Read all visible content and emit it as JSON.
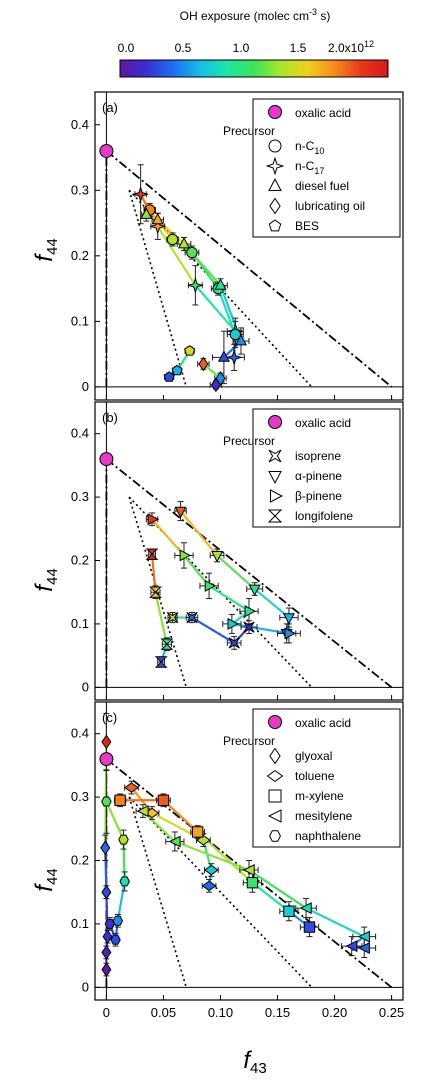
{
  "colorbar": {
    "title_main": "OH exposure (molec cm",
    "title_sup": "-3",
    "title_end": " s)",
    "ticks": [
      "0.0",
      "0.5",
      "1.0",
      "1.5"
    ],
    "last_tick_base": "2.0x10",
    "last_tick_sup": "12"
  },
  "axis": {
    "x_main": "f",
    "x_sub": "43",
    "y_main": "f",
    "y_sub": "44"
  },
  "chart_data": [
    {
      "type": "scatter",
      "panel_label": "(a)",
      "xlim": [
        -0.01,
        0.26
      ],
      "ylim": [
        -0.02,
        0.45
      ],
      "xticks": [
        0,
        0.05,
        0.1,
        0.15,
        0.2,
        0.25
      ],
      "yticks": [
        0,
        0.1,
        0.2,
        0.3,
        0.4
      ],
      "legend": {
        "oxalic": "oxalic acid",
        "header": "Precursor",
        "items": [
          {
            "shape": "circle",
            "label": "n-C",
            "sub": "10"
          },
          {
            "shape": "star4",
            "label": "n-C",
            "sub": "17"
          },
          {
            "shape": "triangle-up",
            "label": "diesel fuel"
          },
          {
            "shape": "diamond",
            "label": "lubricating oil"
          },
          {
            "shape": "pentagon",
            "label": "BES"
          }
        ]
      },
      "reference_point": {
        "name": "oxalic acid",
        "x": 0,
        "y": 0.36
      },
      "series": [
        {
          "shape": "star4",
          "points": [
            {
              "x": 0.03,
              "y": 0.294,
              "xe": 0.005,
              "ye": 0.045,
              "oh": 1.9
            },
            {
              "x": 0.045,
              "y": 0.245,
              "xe": 0.006,
              "ye": 0.02,
              "oh": 1.6
            },
            {
              "x": 0.078,
              "y": 0.155,
              "xe": 0.006,
              "ye": 0.03,
              "oh": 1.0
            },
            {
              "x": 0.113,
              "y": 0.085,
              "xe": 0.007,
              "ye": 0.02,
              "oh": 0.7
            },
            {
              "x": 0.112,
              "y": 0.045,
              "xe": 0.009,
              "ye": 0.02,
              "oh": 0.4
            }
          ]
        },
        {
          "shape": "circle",
          "points": [
            {
              "x": 0.038,
              "y": 0.27,
              "xe": 0.005,
              "ye": 0.01,
              "oh": 1.7
            },
            {
              "x": 0.058,
              "y": 0.225,
              "xe": 0.005,
              "ye": 0.01,
              "oh": 1.3
            },
            {
              "x": 0.075,
              "y": 0.205,
              "xe": 0.006,
              "ye": 0.01,
              "oh": 1.1
            },
            {
              "x": 0.098,
              "y": 0.15,
              "xe": 0.006,
              "ye": 0.01,
              "oh": 0.9
            },
            {
              "x": 0.113,
              "y": 0.08,
              "xe": 0.007,
              "ye": 0.02,
              "oh": 0.7
            }
          ]
        },
        {
          "shape": "triangle-up",
          "points": [
            {
              "x": 0.035,
              "y": 0.263,
              "xe": 0.004,
              "ye": 0.01,
              "oh": 1.2
            },
            {
              "x": 0.045,
              "y": 0.255,
              "xe": 0.005,
              "ye": 0.01,
              "oh": 1.6
            },
            {
              "x": 0.068,
              "y": 0.218,
              "xe": 0.006,
              "ye": 0.01,
              "oh": 1.3
            },
            {
              "x": 0.1,
              "y": 0.155,
              "xe": 0.006,
              "ye": 0.01,
              "oh": 0.9
            },
            {
              "x": 0.118,
              "y": 0.07,
              "xe": 0.007,
              "ye": 0.02,
              "oh": 0.5
            },
            {
              "x": 0.103,
              "y": 0.045,
              "xe": 0.01,
              "ye": 0.04,
              "oh": 0.3
            }
          ]
        },
        {
          "shape": "diamond",
          "points": [
            {
              "x": 0.085,
              "y": 0.035,
              "xe": 0.005,
              "ye": 0.008,
              "oh": 1.8
            },
            {
              "x": 0.1,
              "y": 0.013,
              "xe": 0.005,
              "ye": 0.008,
              "oh": 0.5
            },
            {
              "x": 0.096,
              "y": 0.003,
              "xe": 0.005,
              "ye": 0.006,
              "oh": 0.2
            }
          ]
        },
        {
          "shape": "pentagon",
          "points": [
            {
              "x": 0.073,
              "y": 0.055,
              "xe": 0.004,
              "ye": 0.006,
              "oh": 1.4
            },
            {
              "x": 0.062,
              "y": 0.025,
              "xe": 0.004,
              "ye": 0.006,
              "oh": 0.6
            },
            {
              "x": 0.055,
              "y": 0.015,
              "xe": 0.004,
              "ye": 0.006,
              "oh": 0.3
            }
          ]
        }
      ]
    },
    {
      "type": "scatter",
      "panel_label": "(b)",
      "xlim": [
        -0.01,
        0.26
      ],
      "ylim": [
        -0.02,
        0.45
      ],
      "xticks": [
        0,
        0.05,
        0.1,
        0.15,
        0.2,
        0.25
      ],
      "yticks": [
        0,
        0.1,
        0.2,
        0.3,
        0.4
      ],
      "legend": {
        "oxalic": "oxalic acid",
        "header": "Precursor",
        "items": [
          {
            "shape": "square-x",
            "label": "isoprene"
          },
          {
            "shape": "triangle-down",
            "label": "α-pinene"
          },
          {
            "shape": "triangle-right",
            "label": "β-pinene"
          },
          {
            "shape": "hourglass",
            "label": "longifolene"
          }
        ]
      },
      "reference_point": {
        "name": "oxalic acid",
        "x": 0,
        "y": 0.36
      },
      "series": [
        {
          "shape": "triangle-down",
          "points": [
            {
              "x": 0.065,
              "y": 0.278,
              "xe": 0.005,
              "ye": 0.015,
              "oh": 1.8
            },
            {
              "x": 0.097,
              "y": 0.208,
              "xe": 0.006,
              "ye": 0.01,
              "oh": 1.3
            },
            {
              "x": 0.13,
              "y": 0.155,
              "xe": 0.007,
              "ye": 0.01,
              "oh": 0.9
            },
            {
              "x": 0.16,
              "y": 0.11,
              "xe": 0.008,
              "ye": 0.015,
              "oh": 0.6
            },
            {
              "x": 0.158,
              "y": 0.085,
              "xe": 0.008,
              "ye": 0.015,
              "oh": 0.4
            }
          ]
        },
        {
          "shape": "triangle-right",
          "points": [
            {
              "x": 0.04,
              "y": 0.265,
              "xe": 0.005,
              "ye": 0.01,
              "oh": 1.9
            },
            {
              "x": 0.068,
              "y": 0.208,
              "xe": 0.008,
              "ye": 0.02,
              "oh": 1.2
            },
            {
              "x": 0.09,
              "y": 0.16,
              "xe": 0.008,
              "ye": 0.02,
              "oh": 1.0
            },
            {
              "x": 0.125,
              "y": 0.12,
              "xe": 0.008,
              "ye": 0.02,
              "oh": 0.9
            },
            {
              "x": 0.11,
              "y": 0.1,
              "xe": 0.008,
              "ye": 0.015,
              "oh": 0.7
            },
            {
              "x": 0.16,
              "y": 0.085,
              "xe": 0.01,
              "ye": 0.015,
              "oh": 0.5
            }
          ]
        },
        {
          "shape": "hourglass",
          "points": [
            {
              "x": 0.04,
              "y": 0.21,
              "xe": 0.003,
              "ye": 0.008,
              "oh": 2.0
            },
            {
              "x": 0.043,
              "y": 0.15,
              "xe": 0.004,
              "ye": 0.01,
              "oh": 1.5
            },
            {
              "x": 0.053,
              "y": 0.068,
              "xe": 0.004,
              "ye": 0.01,
              "oh": 0.9
            },
            {
              "x": 0.048,
              "y": 0.04,
              "xe": 0.003,
              "ye": 0.008,
              "oh": 0.3
            }
          ]
        },
        {
          "shape": "square-x",
          "points": [
            {
              "x": 0.058,
              "y": 0.11,
              "xe": 0.004,
              "ye": 0.008,
              "oh": 1.3
            },
            {
              "x": 0.075,
              "y": 0.11,
              "xe": 0.005,
              "ye": 0.008,
              "oh": 0.4
            },
            {
              "x": 0.112,
              "y": 0.07,
              "xe": 0.006,
              "ye": 0.01,
              "oh": 0.3
            },
            {
              "x": 0.125,
              "y": 0.095,
              "xe": 0.007,
              "ye": 0.01,
              "oh": 0.2
            }
          ]
        }
      ]
    },
    {
      "type": "scatter",
      "panel_label": "(c)",
      "xlim": [
        -0.01,
        0.26
      ],
      "ylim": [
        -0.02,
        0.45
      ],
      "xticks": [
        0,
        0.05,
        0.1,
        0.15,
        0.2,
        0.25
      ],
      "xtick_labels": [
        "0",
        "0.05",
        "0.10",
        "0.15",
        "0.20",
        "0.25"
      ],
      "yticks": [
        0,
        0.1,
        0.2,
        0.3,
        0.4
      ],
      "legend": {
        "oxalic": "oxalic acid",
        "header": "Precursor",
        "items": [
          {
            "shape": "diamond",
            "label": "glyoxal"
          },
          {
            "shape": "diamond-wide",
            "label": "toluene"
          },
          {
            "shape": "square",
            "label": "m-xylene"
          },
          {
            "shape": "triangle-left-box",
            "label": "mesitylene"
          },
          {
            "shape": "hexagon",
            "label": "naphthalene"
          }
        ]
      },
      "reference_point": {
        "name": "oxalic acid",
        "x": 0,
        "y": 0.36
      },
      "series": [
        {
          "shape": "diamond",
          "points": [
            {
              "x": 0.0,
              "y": 0.387,
              "xe": 0.002,
              "ye": 0.045,
              "oh": 2.0
            },
            {
              "x": -0.001,
              "y": 0.22,
              "xe": 0.002,
              "ye": 0.02,
              "oh": 0.4
            },
            {
              "x": 0.0,
              "y": 0.15,
              "xe": 0.002,
              "ye": 0.01,
              "oh": 0.3
            },
            {
              "x": 0.001,
              "y": 0.08,
              "xe": 0.002,
              "ye": 0.01,
              "oh": 0.2
            },
            {
              "x": 0.0,
              "y": 0.055,
              "xe": 0.002,
              "ye": 0.01,
              "oh": 0.1
            },
            {
              "x": 0.0,
              "y": 0.028,
              "xe": 0.002,
              "ye": 0.01,
              "oh": 0.0
            }
          ]
        },
        {
          "shape": "hexagon",
          "points": [
            {
              "x": 0.0,
              "y": 0.293,
              "xe": 0.003,
              "ye": 0.05,
              "oh": 1.1
            },
            {
              "x": 0.015,
              "y": 0.233,
              "xe": 0.003,
              "ye": 0.015,
              "oh": 1.3
            },
            {
              "x": 0.016,
              "y": 0.167,
              "xe": 0.003,
              "ye": 0.015,
              "oh": 0.8
            },
            {
              "x": 0.01,
              "y": 0.105,
              "xe": 0.003,
              "ye": 0.01,
              "oh": 0.5
            },
            {
              "x": 0.008,
              "y": 0.075,
              "xe": 0.003,
              "ye": 0.01,
              "oh": 0.3
            },
            {
              "x": 0.003,
              "y": 0.1,
              "xe": 0.003,
              "ye": 0.01,
              "oh": 0.2
            }
          ]
        },
        {
          "shape": "diamond-wide",
          "points": [
            {
              "x": 0.022,
              "y": 0.315,
              "xe": 0.006,
              "ye": 0.01,
              "oh": 1.8
            },
            {
              "x": 0.04,
              "y": 0.275,
              "xe": 0.006,
              "ye": 0.01,
              "oh": 1.5
            },
            {
              "x": 0.085,
              "y": 0.232,
              "xe": 0.006,
              "ye": 0.01,
              "oh": 1.3
            },
            {
              "x": 0.092,
              "y": 0.185,
              "xe": 0.006,
              "ye": 0.01,
              "oh": 0.7
            },
            {
              "x": 0.09,
              "y": 0.16,
              "xe": 0.006,
              "ye": 0.01,
              "oh": 0.4
            }
          ]
        },
        {
          "shape": "square",
          "points": [
            {
              "x": 0.012,
              "y": 0.295,
              "xe": 0.005,
              "ye": 0.01,
              "oh": 1.7
            },
            {
              "x": 0.05,
              "y": 0.295,
              "xe": 0.006,
              "ye": 0.01,
              "oh": 1.8
            },
            {
              "x": 0.08,
              "y": 0.245,
              "xe": 0.006,
              "ye": 0.01,
              "oh": 1.6
            },
            {
              "x": 0.128,
              "y": 0.165,
              "xe": 0.008,
              "ye": 0.015,
              "oh": 1.0
            },
            {
              "x": 0.16,
              "y": 0.12,
              "xe": 0.008,
              "ye": 0.015,
              "oh": 0.7
            },
            {
              "x": 0.178,
              "y": 0.095,
              "xe": 0.008,
              "ye": 0.015,
              "oh": 0.3
            }
          ]
        },
        {
          "shape": "triangle-left-box",
          "points": [
            {
              "x": 0.032,
              "y": 0.278,
              "xe": 0.006,
              "ye": 0.01,
              "oh": 1.3
            },
            {
              "x": 0.06,
              "y": 0.23,
              "xe": 0.008,
              "ye": 0.015,
              "oh": 1.1
            },
            {
              "x": 0.125,
              "y": 0.185,
              "xe": 0.008,
              "ye": 0.015,
              "oh": 1.3
            },
            {
              "x": 0.175,
              "y": 0.125,
              "xe": 0.009,
              "ye": 0.015,
              "oh": 0.8
            },
            {
              "x": 0.226,
              "y": 0.08,
              "xe": 0.01,
              "ye": 0.015,
              "oh": 0.7
            },
            {
              "x": 0.215,
              "y": 0.065,
              "xe": 0.009,
              "ye": 0.015,
              "oh": 0.3
            },
            {
              "x": 0.226,
              "y": 0.062,
              "xe": 0.01,
              "ye": 0.015,
              "oh": 0.4
            }
          ]
        }
      ]
    }
  ],
  "reference_lines": {
    "dashdot": [
      [
        0,
        0.36
      ],
      [
        0.25,
        0
      ]
    ],
    "dotted": [
      [
        [
          0.02,
          0.3
        ],
        [
          0.07,
          0
        ]
      ],
      [
        [
          0.02,
          0.3
        ],
        [
          0.18,
          0
        ]
      ]
    ]
  },
  "colorscale": [
    "#5b1a9c",
    "#3a2fd6",
    "#1f6ff2",
    "#14c0e6",
    "#1ce6a6",
    "#3ce35a",
    "#a6e62a",
    "#f2cf1c",
    "#f58b1c",
    "#e8381a",
    "#d51a1a"
  ],
  "oh_range": [
    0,
    2.1
  ]
}
